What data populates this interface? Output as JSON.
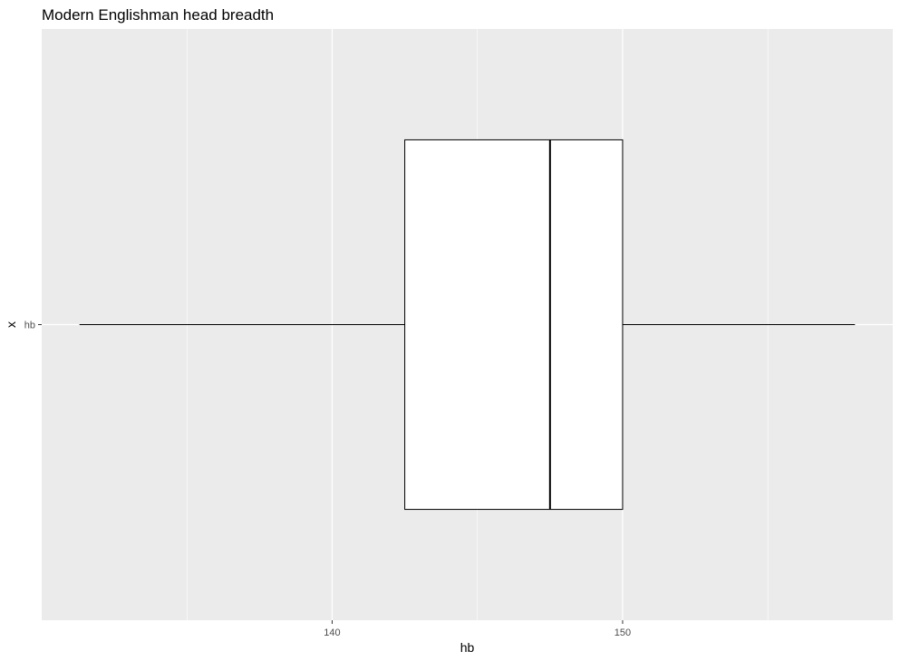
{
  "chart_data": {
    "type": "boxplot",
    "title": "Modern Englishman head breadth",
    "xlabel": "hb",
    "ylabel": "x",
    "orientation": "horizontal",
    "categories": [
      "hb"
    ],
    "boxes": [
      {
        "category": "hb",
        "whisker_low": 131.3,
        "q1": 142.5,
        "median": 147.5,
        "q3": 150.0,
        "whisker_high": 158.0
      }
    ],
    "x_ticks": [
      140,
      150
    ],
    "xlim": [
      130.0,
      159.3
    ],
    "grid": true,
    "colors": {
      "panel": "#ebebeb",
      "grid": "#ffffff",
      "box_fill": "#ffffff",
      "box_stroke": "#000000"
    }
  }
}
